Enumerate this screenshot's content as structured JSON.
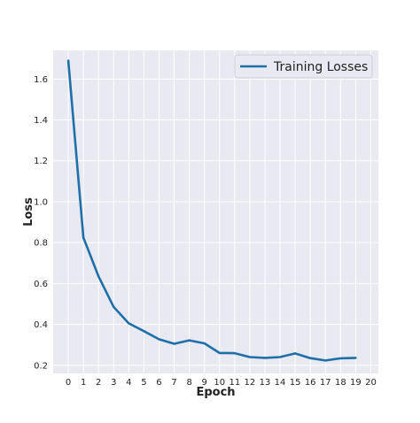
{
  "chart_data": {
    "type": "line",
    "title": "",
    "xlabel": "Epoch",
    "ylabel": "Loss",
    "xlim": [
      -1,
      20.5
    ],
    "ylim": [
      0.16,
      1.74
    ],
    "xticks": [
      0,
      1,
      2,
      3,
      4,
      5,
      6,
      7,
      8,
      9,
      10,
      11,
      12,
      13,
      14,
      15,
      16,
      17,
      18,
      19,
      20
    ],
    "yticks": [
      0.2,
      0.4,
      0.6,
      0.8,
      1.0,
      1.2,
      1.4,
      1.6
    ],
    "ytick_labels": [
      "0.2",
      "0.4",
      "0.6",
      "0.8",
      "1.0",
      "1.2",
      "1.4",
      "1.6"
    ],
    "grid": true,
    "legend_position": "top-right",
    "background_color": "#e8e9f1",
    "series": [
      {
        "name": "Training Losses",
        "color": "#1f6fa8",
        "x": [
          0,
          1,
          2,
          3,
          4,
          5,
          6,
          7,
          8,
          9,
          10,
          11,
          12,
          13,
          14,
          15,
          16,
          17,
          18,
          19
        ],
        "values": [
          1.69,
          0.825,
          0.635,
          0.485,
          0.405,
          0.367,
          0.327,
          0.305,
          0.322,
          0.307,
          0.26,
          0.259,
          0.24,
          0.236,
          0.24,
          0.258,
          0.235,
          0.223,
          0.234,
          0.236
        ]
      }
    ]
  }
}
